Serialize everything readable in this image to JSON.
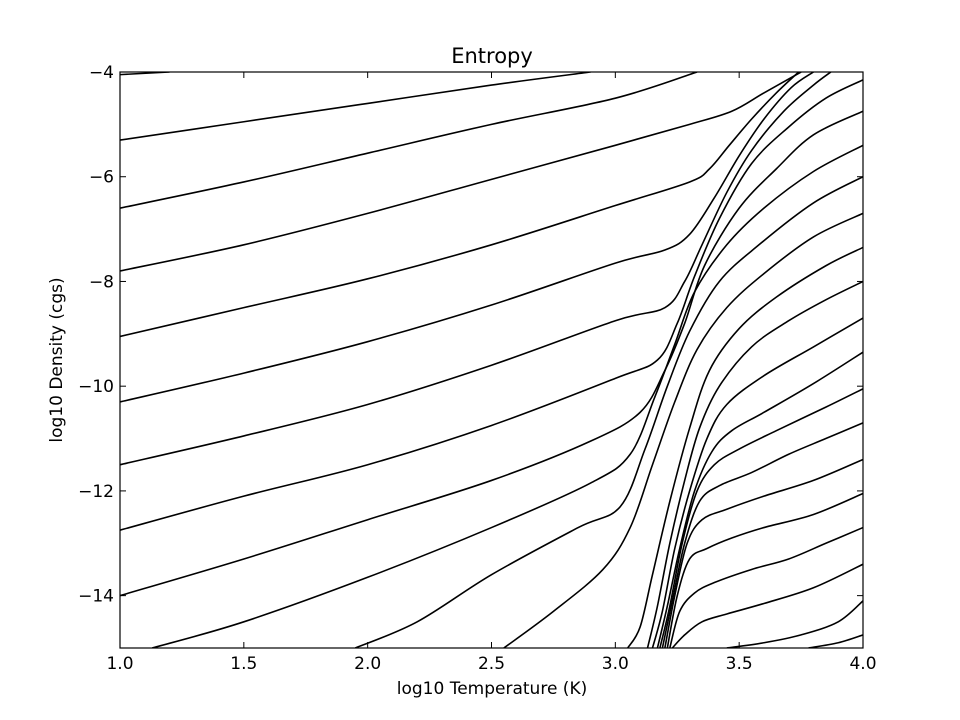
{
  "chart_data": {
    "type": "line",
    "title": "Entropy",
    "xlabel": "log10 Temperature (K)",
    "ylabel": "log10 Density (cgs)",
    "xlim": [
      1.0,
      4.0
    ],
    "ylim": [
      -15,
      -4
    ],
    "xticks": [
      1.0,
      1.5,
      2.0,
      2.5,
      3.0,
      3.5,
      4.0
    ],
    "xtick_labels": [
      "1.0",
      "1.5",
      "2.0",
      "2.5",
      "3.0",
      "3.5",
      "4.0"
    ],
    "yticks": [
      -4,
      -6,
      -8,
      -10,
      -12,
      -14
    ],
    "ytick_labels": [
      "−4",
      "−6",
      "−8",
      "−10",
      "−12",
      "−14"
    ],
    "grid": false,
    "legend": "none",
    "line_color": "#000000",
    "series": [
      {
        "x": [
          1.0,
          1.2
        ],
        "y": [
          -4.05,
          -4.0
        ]
      },
      {
        "x": [
          1.0,
          1.5,
          2.0,
          2.5,
          2.9
        ],
        "y": [
          -5.3,
          -4.95,
          -4.6,
          -4.25,
          -4.0
        ]
      },
      {
        "x": [
          1.0,
          1.5,
          2.0,
          2.5,
          3.0,
          3.33
        ],
        "y": [
          -6.6,
          -6.1,
          -5.55,
          -5.0,
          -4.5,
          -4.0
        ]
      },
      {
        "x": [
          1.0,
          1.5,
          2.0,
          2.5,
          3.0,
          3.3,
          3.47,
          3.6,
          3.75
        ],
        "y": [
          -7.8,
          -7.3,
          -6.7,
          -6.05,
          -5.4,
          -5.0,
          -4.75,
          -4.4,
          -4.0
        ]
      },
      {
        "x": [
          1.0,
          1.5,
          2.0,
          2.5,
          3.0,
          3.3,
          3.38,
          3.46,
          3.55,
          3.65,
          3.74
        ],
        "y": [
          -9.05,
          -8.5,
          -7.95,
          -7.3,
          -6.55,
          -6.1,
          -5.85,
          -5.4,
          -4.9,
          -4.4,
          -4.0
        ]
      },
      {
        "x": [
          1.0,
          1.5,
          2.0,
          2.5,
          3.0,
          3.2,
          3.3,
          3.4,
          3.5,
          3.6,
          3.71,
          3.8
        ],
        "y": [
          -10.3,
          -9.75,
          -9.15,
          -8.45,
          -7.65,
          -7.4,
          -7.1,
          -6.4,
          -5.6,
          -4.9,
          -4.3,
          -4.0
        ]
      },
      {
        "x": [
          1.0,
          1.5,
          2.0,
          2.5,
          3.0,
          3.2,
          3.28,
          3.35,
          3.45,
          3.55,
          3.68,
          3.8,
          3.87
        ],
        "y": [
          -11.5,
          -10.95,
          -10.35,
          -9.6,
          -8.75,
          -8.5,
          -8.0,
          -7.3,
          -6.3,
          -5.5,
          -4.75,
          -4.25,
          -4.0
        ]
      },
      {
        "x": [
          1.0,
          1.5,
          2.0,
          2.5,
          3.0,
          3.17,
          3.25,
          3.32,
          3.42,
          3.55,
          3.7,
          3.85,
          4.0
        ],
        "y": [
          -12.75,
          -12.1,
          -11.5,
          -10.75,
          -9.85,
          -9.5,
          -8.8,
          -7.9,
          -6.8,
          -5.75,
          -5.05,
          -4.5,
          -4.15
        ]
      },
      {
        "x": [
          1.0,
          1.5,
          2.0,
          2.5,
          2.9,
          3.1,
          3.2,
          3.28,
          3.36,
          3.5,
          3.65,
          3.8,
          4.0
        ],
        "y": [
          -14.0,
          -13.3,
          -12.55,
          -11.8,
          -11.05,
          -10.5,
          -9.7,
          -8.8,
          -7.7,
          -6.6,
          -5.85,
          -5.2,
          -4.75
        ]
      },
      {
        "x": [
          1.13,
          1.5,
          2.0,
          2.5,
          2.9,
          3.06,
          3.16,
          3.24,
          3.32,
          3.45,
          3.6,
          3.8,
          4.0
        ],
        "y": [
          -15.0,
          -14.5,
          -13.65,
          -12.7,
          -11.85,
          -11.3,
          -10.2,
          -9.2,
          -8.2,
          -7.3,
          -6.6,
          -5.9,
          -5.4
        ]
      },
      {
        "x": [
          1.95,
          2.2,
          2.5,
          2.85,
          3.02,
          3.12,
          3.21,
          3.3,
          3.42,
          3.58,
          3.8,
          4.0
        ],
        "y": [
          -15.0,
          -14.5,
          -13.6,
          -12.7,
          -12.3,
          -11.2,
          -10.0,
          -8.95,
          -8.0,
          -7.3,
          -6.5,
          -6.0
        ]
      },
      {
        "x": [
          2.55,
          2.75,
          2.95,
          3.06,
          3.15,
          3.24,
          3.33,
          3.45,
          3.6,
          3.8,
          4.0
        ],
        "y": [
          -15.0,
          -14.3,
          -13.5,
          -12.7,
          -11.5,
          -10.3,
          -9.3,
          -8.5,
          -7.85,
          -7.15,
          -6.7
        ]
      },
      {
        "x": [
          3.05,
          3.1,
          3.15,
          3.22,
          3.3,
          3.38,
          3.5,
          3.65,
          3.85,
          4.0
        ],
        "y": [
          -15.0,
          -14.6,
          -13.6,
          -12.2,
          -10.8,
          -9.7,
          -8.9,
          -8.3,
          -7.7,
          -7.35
        ]
      },
      {
        "x": [
          3.13,
          3.17,
          3.22,
          3.28,
          3.34,
          3.42,
          3.55,
          3.7,
          3.85,
          4.0
        ],
        "y": [
          -15.0,
          -14.2,
          -13.0,
          -11.8,
          -10.8,
          -10.0,
          -9.25,
          -8.75,
          -8.35,
          -8.0
        ]
      },
      {
        "x": [
          3.15,
          3.19,
          3.24,
          3.3,
          3.37,
          3.45,
          3.6,
          3.8,
          4.0
        ],
        "y": [
          -15.0,
          -14.3,
          -13.1,
          -12.0,
          -11.0,
          -10.35,
          -9.8,
          -9.25,
          -8.7
        ]
      },
      {
        "x": [
          3.17,
          3.21,
          3.26,
          3.32,
          3.39,
          3.47,
          3.6,
          3.8,
          4.0
        ],
        "y": [
          -15.0,
          -14.2,
          -13.1,
          -12.0,
          -11.25,
          -10.85,
          -10.5,
          -9.95,
          -9.35
        ]
      },
      {
        "x": [
          3.18,
          3.22,
          3.27,
          3.33,
          3.4,
          3.5,
          3.65,
          3.85,
          4.0
        ],
        "y": [
          -15.0,
          -14.2,
          -13.0,
          -12.0,
          -11.5,
          -11.2,
          -10.85,
          -10.4,
          -10.05
        ]
      },
      {
        "x": [
          3.19,
          3.23,
          3.28,
          3.34,
          3.42,
          3.55,
          3.7,
          3.85,
          4.0
        ],
        "y": [
          -15.0,
          -14.1,
          -13.0,
          -12.2,
          -11.9,
          -11.65,
          -11.3,
          -11.0,
          -10.7
        ]
      },
      {
        "x": [
          3.2,
          3.24,
          3.29,
          3.35,
          3.45,
          3.6,
          3.8,
          4.0
        ],
        "y": [
          -15.0,
          -14.0,
          -13.0,
          -12.55,
          -12.35,
          -12.1,
          -11.8,
          -11.4
        ]
      },
      {
        "x": [
          3.21,
          3.25,
          3.3,
          3.37,
          3.47,
          3.6,
          3.8,
          4.0
        ],
        "y": [
          -15.0,
          -14.0,
          -13.3,
          -13.1,
          -12.9,
          -12.7,
          -12.45,
          -12.05
        ]
      },
      {
        "x": [
          3.22,
          3.26,
          3.32,
          3.4,
          3.55,
          3.7,
          3.85,
          4.0
        ],
        "y": [
          -15.0,
          -14.3,
          -13.95,
          -13.75,
          -13.5,
          -13.3,
          -13.0,
          -12.7
        ]
      },
      {
        "x": [
          3.23,
          3.28,
          3.35,
          3.45,
          3.6,
          3.8,
          4.0
        ],
        "y": [
          -15.0,
          -14.75,
          -14.5,
          -14.35,
          -14.15,
          -13.85,
          -13.4
        ]
      },
      {
        "x": [
          3.45,
          3.6,
          3.75,
          3.9,
          4.0
        ],
        "y": [
          -15.0,
          -14.9,
          -14.75,
          -14.5,
          -14.1
        ]
      },
      {
        "x": [
          3.78,
          3.9,
          4.0
        ],
        "y": [
          -15.0,
          -14.9,
          -14.75
        ]
      }
    ]
  }
}
